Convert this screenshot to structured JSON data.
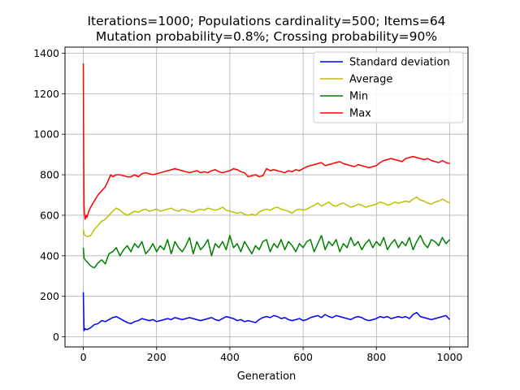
{
  "chart_data": {
    "type": "line",
    "title": "Iterations=1000; Populations cardinality=500; Items=64",
    "subtitle": "Mutation probability=0.8%; Crossing probability=90%",
    "xlabel": "Generation",
    "ylabel": "",
    "xlim": [
      -50,
      1050
    ],
    "ylim": [
      -50,
      1430
    ],
    "xticks": [
      0,
      200,
      400,
      600,
      800,
      1000
    ],
    "yticks": [
      0,
      200,
      400,
      600,
      800,
      1000,
      1200,
      1400
    ],
    "grid": true,
    "legend_position": "top-right",
    "series": [
      {
        "name": "Standard deviation",
        "color": "#0000ff",
        "x": [
          0,
          2,
          5,
          10,
          20,
          30,
          40,
          50,
          60,
          70,
          80,
          90,
          100,
          110,
          120,
          130,
          140,
          150,
          160,
          170,
          180,
          190,
          200,
          210,
          220,
          230,
          240,
          250,
          260,
          270,
          280,
          290,
          300,
          310,
          320,
          330,
          340,
          350,
          360,
          370,
          380,
          390,
          400,
          410,
          420,
          430,
          440,
          450,
          460,
          470,
          480,
          490,
          500,
          510,
          520,
          530,
          540,
          550,
          560,
          570,
          580,
          590,
          600,
          610,
          620,
          630,
          640,
          650,
          660,
          670,
          680,
          690,
          700,
          710,
          720,
          730,
          740,
          750,
          760,
          770,
          780,
          790,
          800,
          810,
          820,
          830,
          840,
          850,
          860,
          870,
          880,
          890,
          900,
          910,
          920,
          930,
          940,
          950,
          960,
          970,
          980,
          990,
          1000
        ],
        "values": [
          220,
          30,
          40,
          35,
          45,
          60,
          65,
          80,
          75,
          85,
          95,
          100,
          90,
          80,
          70,
          65,
          75,
          80,
          90,
          85,
          80,
          85,
          75,
          80,
          85,
          90,
          85,
          95,
          90,
          85,
          90,
          95,
          90,
          85,
          80,
          85,
          90,
          95,
          85,
          80,
          90,
          100,
          95,
          90,
          80,
          85,
          75,
          80,
          75,
          70,
          85,
          95,
          100,
          95,
          105,
          100,
          90,
          95,
          85,
          80,
          85,
          90,
          80,
          85,
          95,
          100,
          105,
          95,
          110,
          100,
          95,
          105,
          100,
          95,
          90,
          85,
          95,
          100,
          95,
          85,
          80,
          85,
          90,
          100,
          95,
          100,
          90,
          95,
          100,
          95,
          100,
          90,
          110,
          120,
          100,
          95,
          90,
          85,
          90,
          95,
          100,
          105,
          85
        ]
      },
      {
        "name": "Average",
        "color": "#bfbf00",
        "x": [
          0,
          2,
          5,
          10,
          20,
          30,
          40,
          50,
          60,
          70,
          80,
          90,
          100,
          110,
          120,
          130,
          140,
          150,
          160,
          170,
          180,
          190,
          200,
          210,
          220,
          230,
          240,
          250,
          260,
          270,
          280,
          290,
          300,
          310,
          320,
          330,
          340,
          350,
          360,
          370,
          380,
          390,
          400,
          410,
          420,
          430,
          440,
          450,
          460,
          470,
          480,
          490,
          500,
          510,
          520,
          530,
          540,
          550,
          560,
          570,
          580,
          590,
          600,
          610,
          620,
          630,
          640,
          650,
          660,
          670,
          680,
          690,
          700,
          710,
          720,
          730,
          740,
          750,
          760,
          770,
          780,
          790,
          800,
          810,
          820,
          830,
          840,
          850,
          860,
          870,
          880,
          890,
          900,
          910,
          920,
          930,
          940,
          950,
          960,
          970,
          980,
          990,
          1000
        ],
        "values": [
          530,
          510,
          500,
          495,
          500,
          530,
          550,
          570,
          580,
          600,
          620,
          635,
          625,
          610,
          600,
          610,
          620,
          615,
          625,
          630,
          620,
          625,
          630,
          620,
          625,
          630,
          635,
          625,
          620,
          630,
          625,
          620,
          615,
          625,
          630,
          625,
          635,
          630,
          625,
          630,
          640,
          625,
          620,
          615,
          610,
          615,
          605,
          600,
          605,
          600,
          615,
          625,
          630,
          625,
          635,
          640,
          630,
          625,
          620,
          610,
          625,
          630,
          625,
          630,
          640,
          650,
          660,
          645,
          655,
          665,
          650,
          645,
          655,
          660,
          650,
          640,
          645,
          655,
          650,
          640,
          645,
          650,
          655,
          665,
          660,
          650,
          655,
          665,
          660,
          665,
          670,
          665,
          680,
          690,
          675,
          670,
          660,
          655,
          665,
          670,
          680,
          670,
          660
        ]
      },
      {
        "name": "Min",
        "color": "#008000",
        "x": [
          0,
          2,
          5,
          10,
          20,
          30,
          40,
          50,
          60,
          70,
          80,
          90,
          100,
          110,
          120,
          130,
          140,
          150,
          160,
          170,
          180,
          190,
          200,
          210,
          220,
          230,
          240,
          250,
          260,
          270,
          280,
          290,
          300,
          310,
          320,
          330,
          340,
          350,
          360,
          370,
          380,
          390,
          400,
          410,
          420,
          430,
          440,
          450,
          460,
          470,
          480,
          490,
          500,
          510,
          520,
          530,
          540,
          550,
          560,
          570,
          580,
          590,
          600,
          610,
          620,
          630,
          640,
          650,
          660,
          670,
          680,
          690,
          700,
          710,
          720,
          730,
          740,
          750,
          760,
          770,
          780,
          790,
          800,
          810,
          820,
          830,
          840,
          850,
          860,
          870,
          880,
          890,
          900,
          910,
          920,
          930,
          940,
          950,
          960,
          970,
          980,
          990,
          1000
        ],
        "values": [
          440,
          390,
          380,
          370,
          350,
          340,
          365,
          380,
          360,
          410,
          420,
          440,
          400,
          430,
          450,
          420,
          460,
          440,
          470,
          410,
          430,
          460,
          420,
          450,
          430,
          480,
          410,
          470,
          440,
          420,
          450,
          490,
          410,
          470,
          430,
          450,
          480,
          400,
          460,
          440,
          470,
          430,
          500,
          440,
          460,
          420,
          470,
          440,
          410,
          450,
          430,
          470,
          480,
          420,
          460,
          440,
          480,
          430,
          470,
          450,
          420,
          460,
          440,
          470,
          480,
          420,
          460,
          500,
          430,
          470,
          450,
          480,
          420,
          460,
          440,
          490,
          450,
          470,
          430,
          460,
          480,
          440,
          470,
          450,
          490,
          430,
          460,
          480,
          440,
          470,
          450,
          490,
          430,
          470,
          500,
          460,
          440,
          480,
          470,
          450,
          490,
          460,
          480
        ]
      },
      {
        "name": "Max",
        "color": "#ff0000",
        "x": [
          0,
          1,
          2,
          3,
          5,
          8,
          10,
          15,
          20,
          30,
          40,
          50,
          60,
          70,
          75,
          80,
          90,
          100,
          110,
          120,
          130,
          140,
          150,
          160,
          170,
          180,
          190,
          200,
          210,
          220,
          230,
          240,
          250,
          260,
          270,
          280,
          290,
          300,
          310,
          320,
          330,
          340,
          350,
          360,
          370,
          380,
          390,
          400,
          410,
          420,
          430,
          440,
          450,
          460,
          470,
          480,
          490,
          500,
          510,
          520,
          530,
          540,
          550,
          560,
          570,
          580,
          590,
          600,
          610,
          620,
          630,
          640,
          650,
          660,
          670,
          680,
          690,
          700,
          710,
          720,
          730,
          740,
          750,
          760,
          770,
          780,
          790,
          800,
          810,
          820,
          830,
          840,
          850,
          860,
          870,
          880,
          890,
          900,
          910,
          920,
          930,
          940,
          950,
          960,
          970,
          980,
          990,
          1000
        ],
        "values": [
          1350,
          900,
          650,
          610,
          580,
          600,
          590,
          620,
          640,
          670,
          700,
          720,
          740,
          780,
          800,
          790,
          800,
          800,
          795,
          790,
          790,
          800,
          790,
          805,
          810,
          805,
          800,
          805,
          810,
          815,
          820,
          825,
          830,
          825,
          820,
          815,
          810,
          815,
          820,
          810,
          815,
          810,
          820,
          825,
          815,
          810,
          815,
          820,
          830,
          825,
          815,
          810,
          790,
          795,
          800,
          790,
          795,
          830,
          820,
          825,
          820,
          815,
          810,
          820,
          815,
          825,
          820,
          830,
          840,
          845,
          850,
          855,
          860,
          845,
          850,
          855,
          860,
          865,
          855,
          850,
          845,
          840,
          850,
          845,
          840,
          835,
          840,
          845,
          860,
          870,
          875,
          880,
          875,
          870,
          865,
          880,
          885,
          890,
          885,
          880,
          875,
          880,
          870,
          865,
          860,
          870,
          860,
          855
        ]
      }
    ]
  }
}
